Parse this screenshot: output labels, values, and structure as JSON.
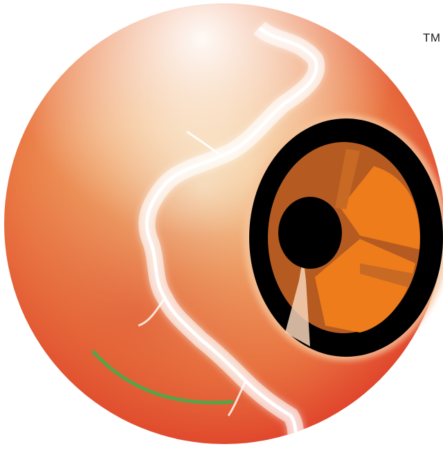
{
  "logo": {
    "trademark": "TM",
    "colors": {
      "sphere_core": "#f3d6a9",
      "sphere_mid": "#ec8b52",
      "sphere_edge": "#e3452b",
      "lightning": "#ffffff",
      "disc_ring": "#000000",
      "disc_orange": "#ef7c1a",
      "disc_dark_orange": "#b55b22",
      "swoosh": "#55a548"
    }
  }
}
